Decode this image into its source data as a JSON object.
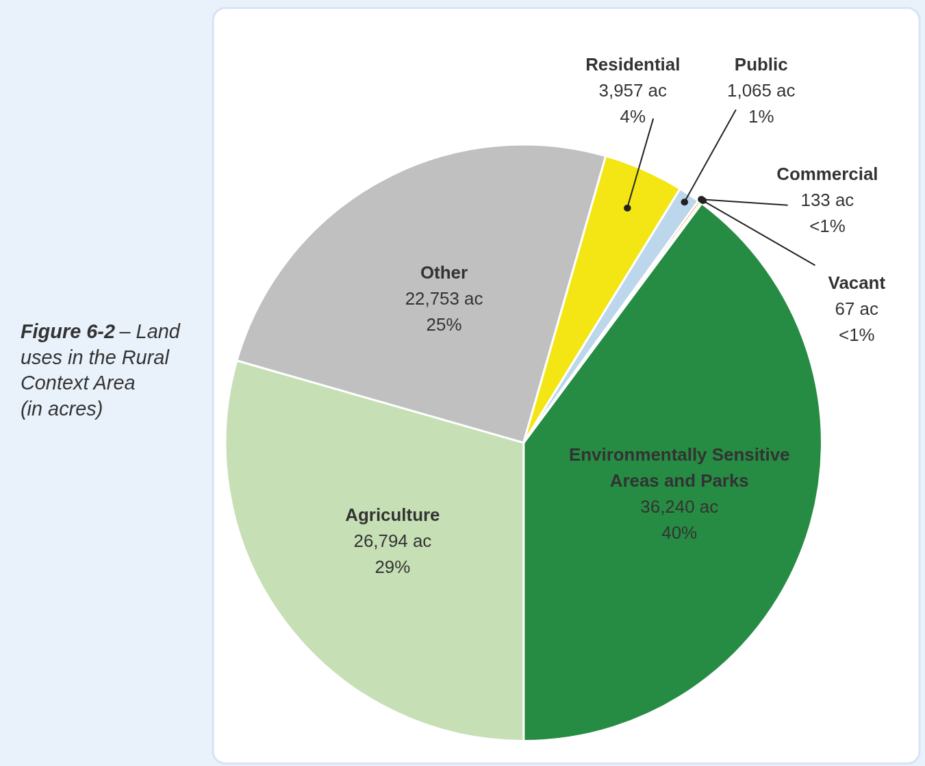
{
  "chart_data": {
    "type": "pie",
    "title": "Figure 6-2 – Land uses in the Rural Context Area (in acres)",
    "categories": [
      "Environmentally Sensitive Areas and Parks",
      "Agriculture",
      "Other",
      "Residential",
      "Public",
      "Commercial",
      "Vacant"
    ],
    "values": [
      36240,
      26794,
      22753,
      3957,
      1065,
      133,
      67
    ],
    "colors": [
      "#268c43",
      "#c6dfb5",
      "#c0c0c0",
      "#f4e614",
      "#bcd7ec",
      "#f0a030",
      "#9e9e9e"
    ],
    "value_labels": [
      "36,240 ac\n40%",
      "26,794 ac\n29%",
      "22,753 ac\n25%",
      "3,957 ac\n4%",
      "1,065 ac\n1%",
      "133 ac\n<1%",
      "67 ac\n<1%"
    ]
  }
}
